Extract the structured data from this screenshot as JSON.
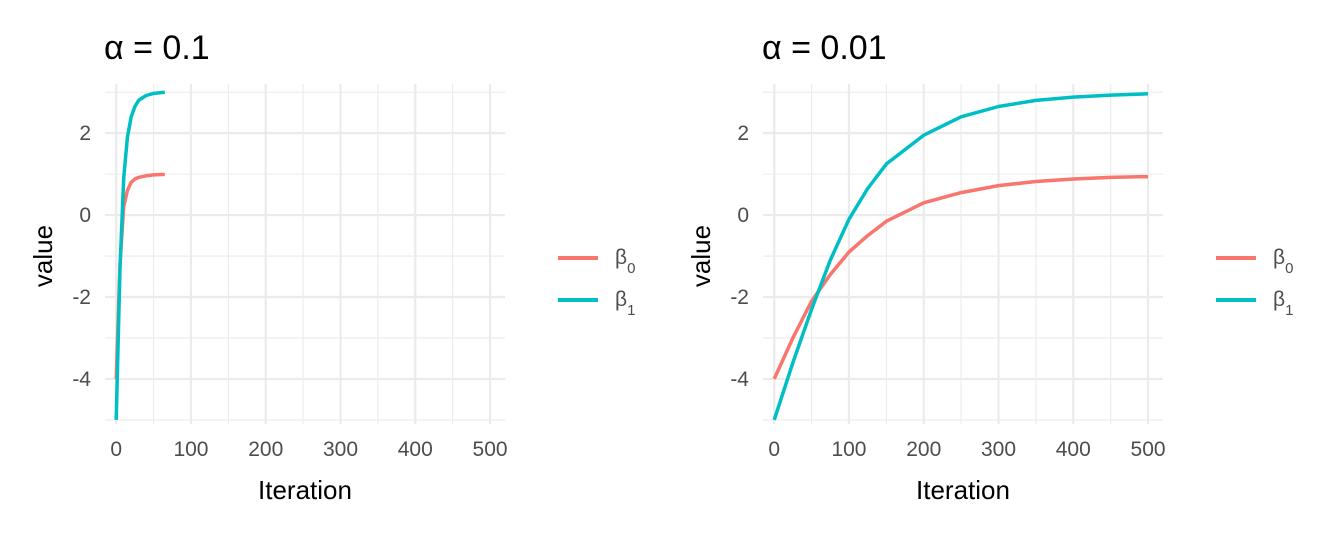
{
  "chart_data": [
    {
      "type": "line",
      "title": "α = 0.1",
      "xlabel": "Iteration",
      "ylabel": "value",
      "xlim": [
        -15,
        520
      ],
      "ylim": [
        -5.1,
        3.2
      ],
      "xticks": [
        0,
        100,
        200,
        300,
        400,
        500
      ],
      "yticks": [
        -4,
        -2,
        0,
        2
      ],
      "grid": true,
      "legend": "right",
      "series": [
        {
          "name": "β0",
          "color": "#F8766D",
          "x": [
            0,
            5,
            10,
            15,
            20,
            25,
            30,
            40,
            50,
            60,
            65
          ],
          "y": [
            -4,
            -1.2,
            0.2,
            0.6,
            0.8,
            0.88,
            0.92,
            0.96,
            0.98,
            0.99,
            0.99
          ]
        },
        {
          "name": "β1",
          "color": "#00BFC4",
          "x": [
            0,
            5,
            10,
            15,
            20,
            25,
            30,
            40,
            50,
            60,
            65
          ],
          "y": [
            -5,
            -1.3,
            0.9,
            1.9,
            2.4,
            2.65,
            2.8,
            2.92,
            2.97,
            2.99,
            3.0
          ]
        }
      ]
    },
    {
      "type": "line",
      "title": "α = 0.01",
      "xlabel": "Iteration",
      "ylabel": "value",
      "xlim": [
        -15,
        520
      ],
      "ylim": [
        -5.1,
        3.2
      ],
      "xticks": [
        0,
        100,
        200,
        300,
        400,
        500
      ],
      "yticks": [
        -4,
        -2,
        0,
        2
      ],
      "grid": true,
      "legend": "right",
      "series": [
        {
          "name": "β0",
          "color": "#F8766D",
          "x": [
            0,
            25,
            50,
            75,
            100,
            125,
            150,
            200,
            250,
            300,
            350,
            400,
            450,
            500
          ],
          "y": [
            -4,
            -3.0,
            -2.1,
            -1.45,
            -0.9,
            -0.5,
            -0.15,
            0.3,
            0.55,
            0.72,
            0.82,
            0.88,
            0.92,
            0.94
          ]
        },
        {
          "name": "β1",
          "color": "#00BFC4",
          "x": [
            0,
            25,
            50,
            75,
            100,
            125,
            150,
            200,
            250,
            300,
            350,
            400,
            450,
            500
          ],
          "y": [
            -5,
            -3.6,
            -2.3,
            -1.1,
            -0.1,
            0.65,
            1.25,
            1.95,
            2.4,
            2.65,
            2.8,
            2.88,
            2.93,
            2.96
          ]
        }
      ]
    }
  ]
}
